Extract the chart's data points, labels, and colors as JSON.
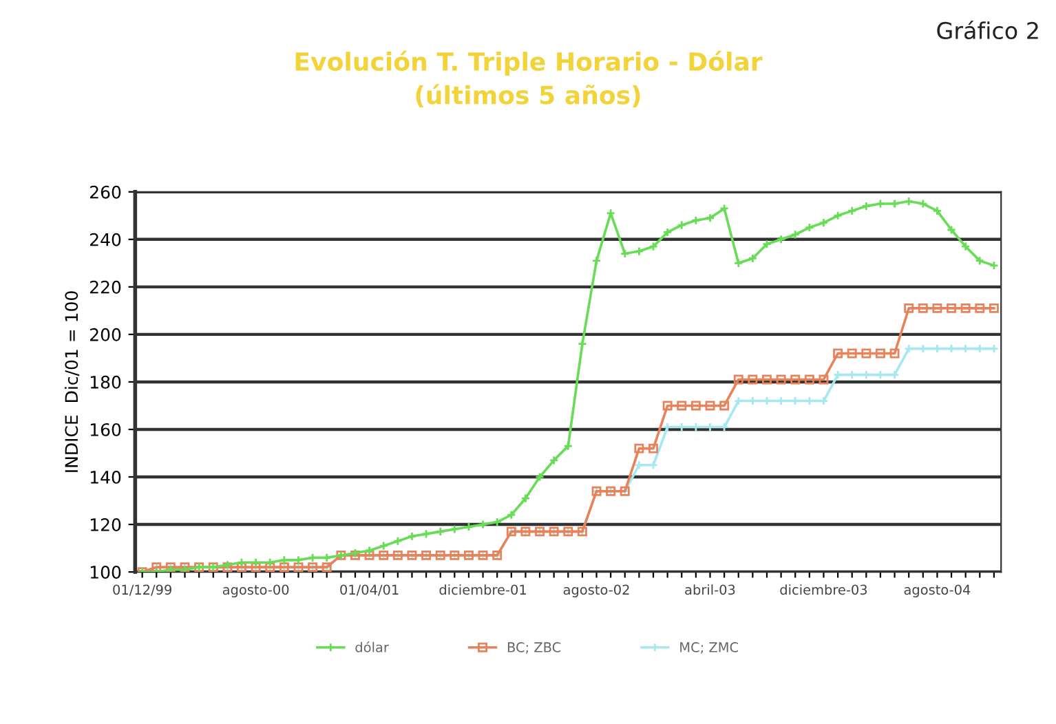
{
  "chart_data": {
    "type": "line",
    "title": "Evolución T. Triple Horario - Dólar\n(últimos 5 años)",
    "ylabel": "INDICE  Dic/01 = 100",
    "annotations": [
      "Gráfico 2"
    ],
    "categories": [
      "01/12/99",
      null,
      null,
      null,
      null,
      null,
      null,
      null,
      "agosto-00",
      null,
      null,
      null,
      null,
      null,
      null,
      null,
      "01/04/01",
      null,
      null,
      null,
      null,
      null,
      null,
      null,
      "diciembre-01",
      null,
      null,
      null,
      null,
      null,
      null,
      null,
      "agosto-02",
      null,
      null,
      null,
      null,
      null,
      null,
      null,
      "abril-03",
      null,
      null,
      null,
      null,
      null,
      null,
      null,
      "diciembre-03",
      null,
      null,
      null,
      null,
      null,
      null,
      null,
      "agosto-04",
      null,
      null,
      null,
      null
    ],
    "series": [
      {
        "name": "dólar",
        "color": "#66dd55",
        "marker": "cross",
        "values": [
          100,
          100,
          101,
          101,
          102,
          102,
          103,
          104,
          104,
          104,
          105,
          105,
          106,
          106,
          107,
          108,
          109,
          111,
          113,
          115,
          116,
          117,
          118,
          119,
          120,
          121,
          124,
          131,
          140,
          147,
          153,
          196,
          231,
          251,
          234,
          235,
          237,
          243,
          246,
          248,
          249,
          253,
          230,
          232,
          238,
          240,
          242,
          245,
          247,
          250,
          252,
          254,
          255,
          255,
          256,
          255,
          252,
          244,
          237,
          231,
          229
        ]
      },
      {
        "name": "BC; ZBC",
        "color": "#e8825a",
        "marker": "square",
        "values": [
          100,
          102,
          102,
          102,
          102,
          102,
          102,
          102,
          102,
          102,
          102,
          102,
          102,
          102,
          107,
          107,
          107,
          107,
          107,
          107,
          107,
          107,
          107,
          107,
          107,
          107,
          117,
          117,
          117,
          117,
          117,
          117,
          134,
          134,
          134,
          152,
          152,
          170,
          170,
          170,
          170,
          170,
          181,
          181,
          181,
          181,
          181,
          181,
          181,
          192,
          192,
          192,
          192,
          192,
          211,
          211,
          211,
          211,
          211,
          211,
          211
        ]
      },
      {
        "name": "MC; ZMC",
        "color": "#a6e8f0",
        "marker": "cross",
        "values": [
          100,
          102,
          102,
          102,
          102,
          102,
          102,
          102,
          102,
          102,
          102,
          102,
          102,
          102,
          107,
          107,
          107,
          107,
          107,
          107,
          107,
          107,
          107,
          107,
          107,
          107,
          117,
          117,
          117,
          117,
          117,
          117,
          134,
          134,
          134,
          145,
          145,
          161,
          161,
          161,
          161,
          161,
          172,
          172,
          172,
          172,
          172,
          172,
          172,
          183,
          183,
          183,
          183,
          183,
          194,
          194,
          194,
          194,
          194,
          194,
          194
        ]
      }
    ],
    "ylim": [
      100,
      260
    ],
    "yticks": [
      100,
      120,
      140,
      160,
      180,
      200,
      220,
      240,
      260
    ],
    "grid": "y",
    "legend": "bottom",
    "line_style": "solid"
  }
}
